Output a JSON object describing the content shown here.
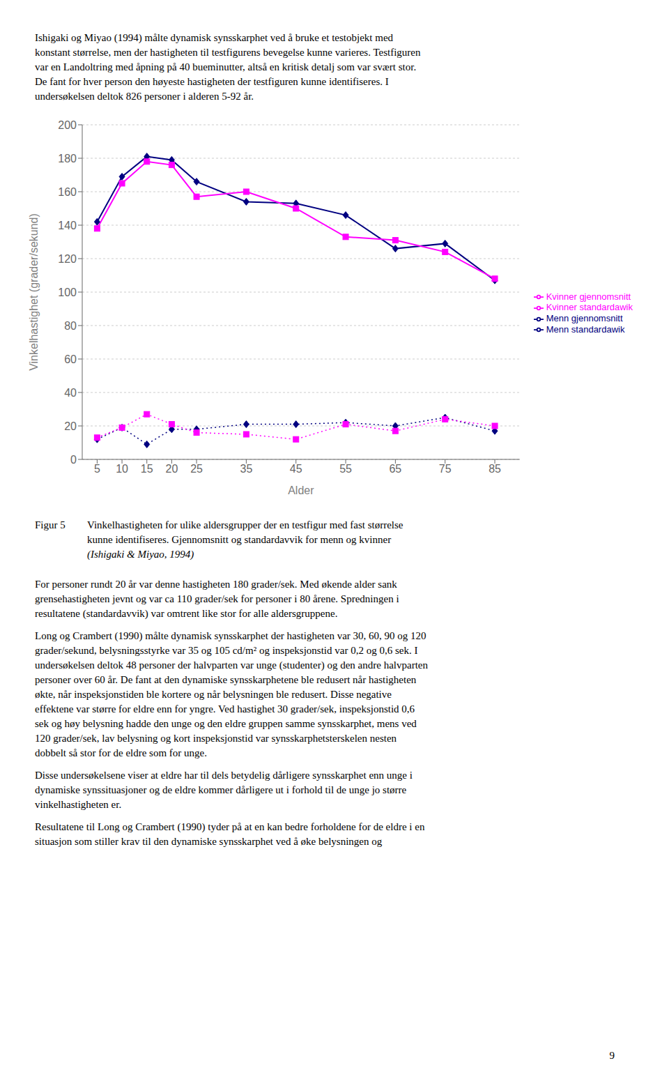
{
  "chart_data": {
    "type": "line",
    "x_label": "Alder",
    "y_label": "Vinkelhastighet (grader/sekund)",
    "x": [
      5,
      10,
      15,
      20,
      25,
      35,
      45,
      55,
      65,
      75,
      85
    ],
    "series": [
      {
        "name": "Menn gjennomsnitt",
        "color": "#000080",
        "marker": "diamond",
        "line_style": "solid",
        "values": [
          142,
          169,
          181,
          179,
          166,
          154,
          153,
          146,
          126,
          129,
          107
        ]
      },
      {
        "name": "Kvinner gjennomsnitt",
        "color": "#FF00FF",
        "marker": "square",
        "line_style": "solid",
        "values": [
          138,
          165,
          178,
          176,
          157,
          160,
          150,
          133,
          131,
          124,
          108
        ]
      },
      {
        "name": "Menn standardawik",
        "color": "#000080",
        "marker": "diamond",
        "line_style": "dotted",
        "values": [
          12,
          19,
          9,
          18,
          18,
          21,
          21,
          22,
          20,
          25,
          17
        ]
      },
      {
        "name": "Kvinner standardawik",
        "color": "#FF00FF",
        "marker": "square",
        "line_style": "dotted",
        "values": [
          13,
          19,
          27,
          21,
          16,
          15,
          12,
          21,
          17,
          24,
          20
        ]
      }
    ],
    "xlim": [
      2,
      90
    ],
    "xticks": [
      5,
      10,
      15,
      20,
      25,
      35,
      45,
      55,
      65,
      75,
      85
    ],
    "ylim": [
      0,
      200
    ],
    "yticks": [
      0,
      20,
      40,
      60,
      80,
      100,
      120,
      140,
      160,
      180,
      200
    ],
    "grid": true,
    "legend": "right"
  },
  "text_above": [
    "Ishigaki og Miyao (1994) målte dynamisk synsskarphet ved å bruke et testobjekt med",
    "konstant størrelse, men der hastigheten til testfigurens bevegelse kunne varieres. Testfiguren",
    "var en Landoltring med åpning på 40 bueminutter, altså en kritisk detalj som var svært stor.",
    "De fant for hver person den høyeste hastigheten der testfiguren kunne identifiseres. I",
    "undersøkelsen deltok 826 personer i alderen 5-92 år."
  ],
  "caption": {
    "label": "Figur 5",
    "lines": [
      "Vinkelhastigheten for ulike aldersgrupper der en testfigur med fast størrelse",
      "kunne identifiseres. Gjennomsnitt og standardavvik for menn og kvinner",
      "(Ishigaki & Miyao, 1994)"
    ]
  },
  "text_below": [
    [
      "For personer rundt 20 år var denne hastigheten 180 grader/sek. Med økende alder sank",
      "grensehastigheten jevnt og var ca 110 grader/sek for personer i 80 årene. Spredningen i",
      "resultatene (standardavvik) var omtrent like stor for alle aldersgruppene."
    ],
    [
      "Long og Crambert (1990) målte dynamisk synsskarphet der hastigheten var 30, 60, 90 og 120",
      "grader/sekund,  belysningsstyrke var 35 og 105 cd/m² og inspeksjonstid var 0,2 og 0,6 sek. I",
      "undersøkelsen deltok 48 personer der halvparten var unge (studenter) og den andre halvparten",
      "personer over 60 år. De fant at den dynamiske synsskarphetene ble redusert når hastigheten",
      "økte,  når inspeksjonstiden ble kortere og når belysningen ble redusert. Disse negative",
      "effektene var større for eldre enn for yngre. Ved hastighet 30 grader/sek, inspeksjonstid 0,6",
      "sek og høy belysning hadde den unge og den eldre gruppen samme synsskarphet, mens ved",
      "120 grader/sek, lav belysning og kort inspeksjonstid var synsskarphetsterskelen nesten",
      "dobbelt så stor for de eldre som for unge."
    ],
    [
      "Disse undersøkelsene viser at eldre har til dels betydelig dårligere synsskarphet enn unge i",
      "dynamiske synssituasjoner og de eldre kommer dårligere ut i forhold til de unge jo større",
      "vinkelhastigheten er."
    ],
    [
      "Resultatene til Long og Crambert (1990) tyder på at en kan bedre forholdene for de eldre i en",
      "situasjon som stiller krav til den dynamiske synsskarphet ved å øke belysningen og"
    ]
  ],
  "page_number": "9"
}
